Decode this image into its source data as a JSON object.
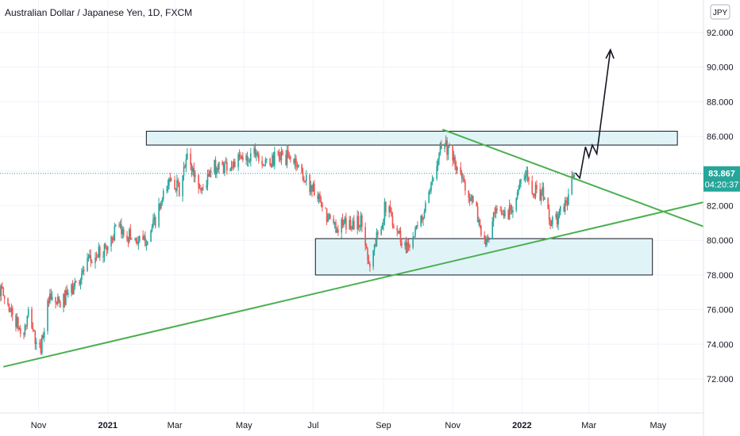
{
  "chart_data": {
    "type": "candlestick",
    "title": "Australian Dollar / Japanese Yen, 1D, FXCM",
    "currency_label": "JPY",
    "xlabel": "",
    "ylabel": "",
    "ylim": [
      70.0,
      93.0
    ],
    "y_ticks": [
      72,
      74,
      76,
      78,
      80,
      82,
      84,
      86,
      88,
      90,
      92
    ],
    "y_tick_labels": [
      "72.000",
      "74.000",
      "76.000",
      "78.000",
      "80.000",
      "82.000",
      "84.000",
      "86.000",
      "88.000",
      "90.000",
      "92.000"
    ],
    "x_range": [
      "2020-09-28",
      "2022-06-10"
    ],
    "x_ticks": [
      {
        "date": "2020-11-01",
        "label": "Nov",
        "bold": false
      },
      {
        "date": "2021-01-01",
        "label": "2021",
        "bold": true
      },
      {
        "date": "2021-03-01",
        "label": "Mar",
        "bold": false
      },
      {
        "date": "2021-05-01",
        "label": "May",
        "bold": false
      },
      {
        "date": "2021-07-01",
        "label": "Jul",
        "bold": false
      },
      {
        "date": "2021-09-01",
        "label": "Sep",
        "bold": false
      },
      {
        "date": "2021-11-01",
        "label": "Nov",
        "bold": false
      },
      {
        "date": "2022-01-01",
        "label": "2022",
        "bold": true
      },
      {
        "date": "2022-03-01",
        "label": "Mar",
        "bold": false
      },
      {
        "date": "2022-05-01",
        "label": "May",
        "bold": false
      }
    ],
    "current_price": {
      "value": 83.867,
      "label": "83.867",
      "countdown": "04:20:37",
      "color": "#26a69a"
    },
    "price_path": [
      [
        "2020-09-28",
        77.2
      ],
      [
        "2020-10-10",
        75.6
      ],
      [
        "2020-10-18",
        74.4
      ],
      [
        "2020-10-24",
        75.9
      ],
      [
        "2020-11-01",
        73.2
      ],
      [
        "2020-11-10",
        76.5
      ],
      [
        "2020-11-20",
        76.3
      ],
      [
        "2020-12-01",
        77.2
      ],
      [
        "2020-12-15",
        78.7
      ],
      [
        "2020-12-31",
        79.6
      ],
      [
        "2021-01-08",
        80.6
      ],
      [
        "2021-01-20",
        80.3
      ],
      [
        "2021-02-01",
        79.8
      ],
      [
        "2021-02-10",
        80.8
      ],
      [
        "2021-02-20",
        82.6
      ],
      [
        "2021-02-26",
        83.8
      ],
      [
        "2021-03-05",
        82.8
      ],
      [
        "2021-03-12",
        84.8
      ],
      [
        "2021-03-24",
        82.9
      ],
      [
        "2021-04-05",
        84.2
      ],
      [
        "2021-04-20",
        84.4
      ],
      [
        "2021-05-05",
        84.8
      ],
      [
        "2021-05-11",
        85.3
      ],
      [
        "2021-05-20",
        84.3
      ],
      [
        "2021-06-01",
        84.9
      ],
      [
        "2021-06-15",
        84.6
      ],
      [
        "2021-06-25",
        83.4
      ],
      [
        "2021-07-01",
        83.0
      ],
      [
        "2021-07-10",
        81.6
      ],
      [
        "2021-07-20",
        80.8
      ],
      [
        "2021-08-01",
        80.9
      ],
      [
        "2021-08-12",
        81.1
      ],
      [
        "2021-08-20",
        78.6
      ],
      [
        "2021-08-27",
        80.4
      ],
      [
        "2021-09-03",
        82.0
      ],
      [
        "2021-09-10",
        81.1
      ],
      [
        "2021-09-20",
        79.6
      ],
      [
        "2021-10-01",
        80.6
      ],
      [
        "2021-10-12",
        82.6
      ],
      [
        "2021-10-20",
        85.4
      ],
      [
        "2021-10-25",
        85.7
      ],
      [
        "2021-11-02",
        84.4
      ],
      [
        "2021-11-12",
        83.2
      ],
      [
        "2021-11-22",
        81.6
      ],
      [
        "2021-11-30",
        79.6
      ],
      [
        "2021-12-08",
        81.4
      ],
      [
        "2021-12-20",
        81.6
      ],
      [
        "2021-12-31",
        83.2
      ],
      [
        "2022-01-05",
        83.8
      ],
      [
        "2022-01-12",
        82.9
      ],
      [
        "2022-01-20",
        82.6
      ],
      [
        "2022-01-27",
        80.9
      ],
      [
        "2022-02-03",
        81.4
      ],
      [
        "2022-02-10",
        82.4
      ],
      [
        "2022-02-16",
        83.9
      ]
    ],
    "annotations": {
      "resistance_zone": {
        "x_start": "2021-02-04",
        "x_end": "2022-05-18",
        "y_low": 85.5,
        "y_high": 86.3,
        "fill": "#e0f4f8",
        "stroke": "#131722"
      },
      "support_zone": {
        "x_start": "2021-07-03",
        "x_end": "2022-04-26",
        "y_low": 78.0,
        "y_high": 80.1,
        "fill": "#e0f4f8",
        "stroke": "#131722"
      },
      "ascending_trendline": {
        "from": [
          "2020-10-01",
          72.7
        ],
        "to": [
          "2022-06-10",
          82.2
        ],
        "color": "#4caf50"
      },
      "descending_trendline": {
        "from": [
          "2021-10-23",
          86.4
        ],
        "to": [
          "2022-06-10",
          80.8
        ],
        "color": "#4caf50"
      },
      "projection_path": {
        "points": [
          [
            "2022-02-17",
            83.9
          ],
          [
            "2022-02-21",
            83.6
          ],
          [
            "2022-02-26",
            85.4
          ],
          [
            "2022-03-01",
            84.8
          ],
          [
            "2022-03-04",
            85.5
          ],
          [
            "2022-03-08",
            85.0
          ],
          [
            "2022-03-20",
            91.0
          ]
        ],
        "arrow_head": [
          [
            "2022-03-16",
            90.5
          ],
          [
            "2022-03-20",
            91.0
          ],
          [
            "2022-03-23",
            90.5
          ]
        ],
        "color": "#131722"
      }
    },
    "up_color": "#26a69a",
    "down_color": "#ef5350",
    "grid": true,
    "legend": "none"
  }
}
